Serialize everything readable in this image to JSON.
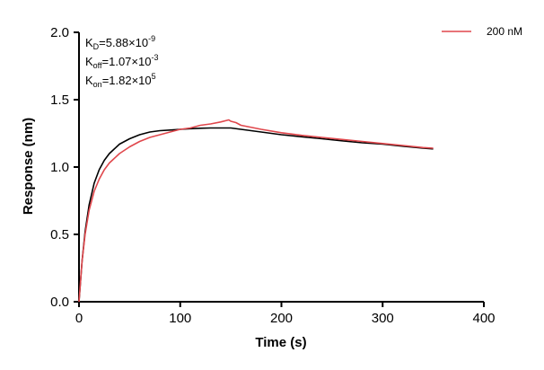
{
  "chart_data": {
    "type": "line",
    "title": "",
    "xlabel": "Time (s)",
    "ylabel": "Response (nm)",
    "xlim": [
      0,
      400
    ],
    "ylim": [
      0,
      2.0
    ],
    "x_ticks": [
      0,
      100,
      200,
      300,
      400
    ],
    "y_ticks": [
      0.0,
      0.5,
      1.0,
      1.5,
      2.0
    ],
    "x_tick_labels": [
      "0",
      "100",
      "200",
      "300",
      "400"
    ],
    "y_tick_labels": [
      "0.0",
      "0.5",
      "1.0",
      "1.5",
      "2.0"
    ],
    "grid": false,
    "legend_position": "top-right",
    "annotations": [
      {
        "label": "K",
        "sub": "D",
        "text": "=5.88×10",
        "sup": "-9"
      },
      {
        "label": "K",
        "sub": "off",
        "text": "=1.07×10",
        "sup": "-3"
      },
      {
        "label": "K",
        "sub": "on",
        "text": "=1.82×10",
        "sup": "5"
      }
    ],
    "series": [
      {
        "name": "200 nM",
        "color": "#e0474c",
        "x": [
          0,
          3,
          6,
          10,
          15,
          20,
          25,
          30,
          40,
          50,
          60,
          70,
          80,
          90,
          100,
          110,
          120,
          130,
          140,
          148,
          150,
          155,
          160,
          180,
          200,
          220,
          240,
          260,
          280,
          300,
          320,
          340,
          350
        ],
        "y": [
          0.0,
          0.3,
          0.5,
          0.68,
          0.82,
          0.91,
          0.98,
          1.03,
          1.1,
          1.15,
          1.19,
          1.22,
          1.24,
          1.26,
          1.28,
          1.29,
          1.31,
          1.32,
          1.335,
          1.35,
          1.34,
          1.33,
          1.31,
          1.28,
          1.255,
          1.235,
          1.22,
          1.205,
          1.19,
          1.175,
          1.16,
          1.145,
          1.14
        ]
      },
      {
        "name": "",
        "color": "#000000",
        "x": [
          0,
          3,
          6,
          10,
          15,
          20,
          25,
          30,
          40,
          50,
          60,
          70,
          80,
          90,
          100,
          110,
          120,
          130,
          140,
          150,
          160,
          180,
          200,
          220,
          240,
          260,
          280,
          300,
          320,
          340,
          350
        ],
        "y": [
          0.0,
          0.3,
          0.52,
          0.72,
          0.88,
          0.98,
          1.05,
          1.1,
          1.17,
          1.21,
          1.24,
          1.26,
          1.27,
          1.275,
          1.28,
          1.285,
          1.288,
          1.29,
          1.29,
          1.29,
          1.28,
          1.26,
          1.24,
          1.225,
          1.21,
          1.195,
          1.18,
          1.17,
          1.155,
          1.14,
          1.135
        ]
      }
    ]
  }
}
